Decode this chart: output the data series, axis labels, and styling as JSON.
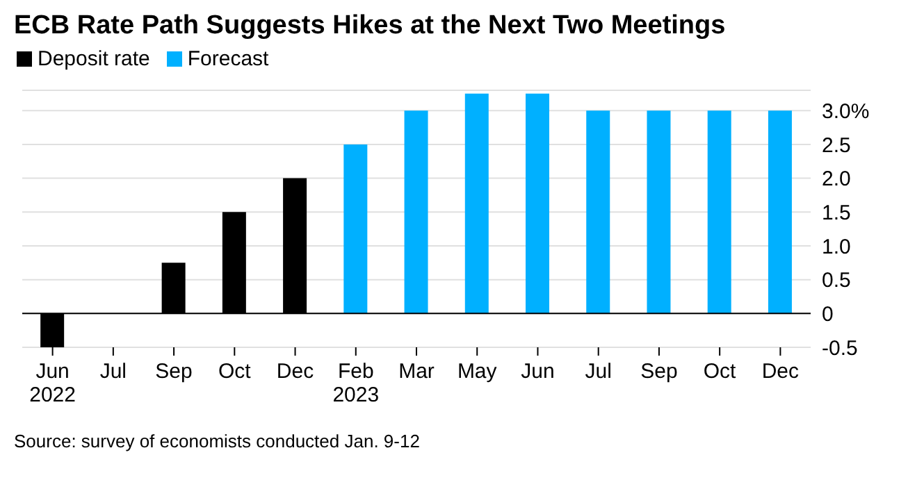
{
  "chart_data": {
    "type": "bar",
    "title": "ECB Rate Path Suggests Hikes at the Next Two Meetings",
    "categories": [
      "Jun\n2022",
      "Jul",
      "Sep",
      "Oct",
      "Dec",
      "Feb\n2023",
      "Mar",
      "May",
      "Jun",
      "Jul",
      "Sep",
      "Oct",
      "Dec"
    ],
    "series": [
      {
        "name": "Deposit rate",
        "color": "#000000",
        "values": [
          -0.5,
          0,
          0.75,
          1.5,
          2.0,
          null,
          null,
          null,
          null,
          null,
          null,
          null,
          null
        ]
      },
      {
        "name": "Forecast",
        "color": "#00b0ff",
        "values": [
          null,
          null,
          null,
          null,
          null,
          2.5,
          3.0,
          3.25,
          3.25,
          3.0,
          3.0,
          3.0,
          3.0
        ]
      }
    ],
    "ylim": [
      -0.5,
      3.3
    ],
    "yticks": [
      -0.5,
      0,
      0.5,
      {
        "value": 1,
        "label": "1.0"
      },
      1.5,
      {
        "value": 2,
        "label": "2.0"
      },
      2.5,
      {
        "value": 3,
        "label": "3.0%"
      }
    ],
    "grid": "y",
    "legend": "top left",
    "ref_lines": [
      {
        "axis": "y",
        "value": 0,
        "color": "#000000"
      }
    ],
    "annotations": [
      "Source: survey of economists conducted Jan. 9-12"
    ]
  }
}
